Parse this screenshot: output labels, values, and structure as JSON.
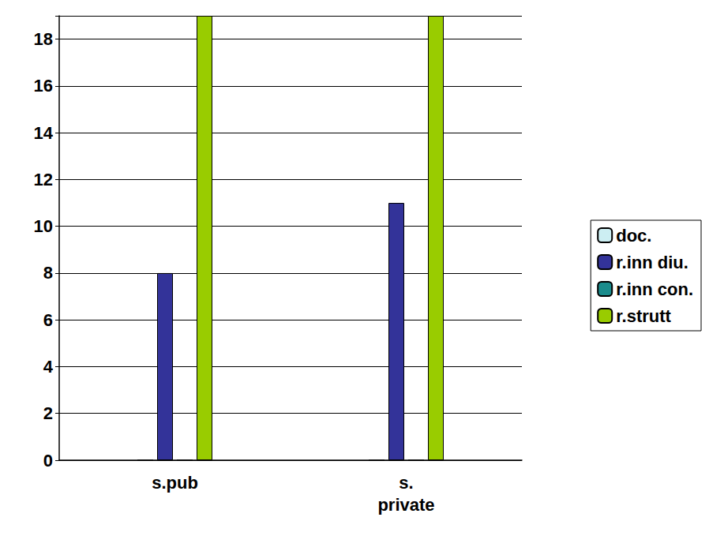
{
  "chart_data": {
    "type": "bar",
    "categories": [
      "s.pub",
      "s. private"
    ],
    "series": [
      {
        "name": "doc.",
        "color": "#cceef2",
        "values": [
          0,
          0
        ]
      },
      {
        "name": "r.inn diu.",
        "color": "#333399",
        "values": [
          8,
          11
        ]
      },
      {
        "name": "r.inn con.",
        "color": "#1a8c8c",
        "values": [
          0,
          0
        ]
      },
      {
        "name": "r.strutt",
        "color": "#99cc00",
        "values": [
          19,
          19
        ]
      }
    ],
    "ylim": [
      0,
      19
    ],
    "yticks": [
      0,
      2,
      4,
      6,
      8,
      10,
      12,
      14,
      16,
      18
    ],
    "grid": true,
    "legend": "right"
  }
}
